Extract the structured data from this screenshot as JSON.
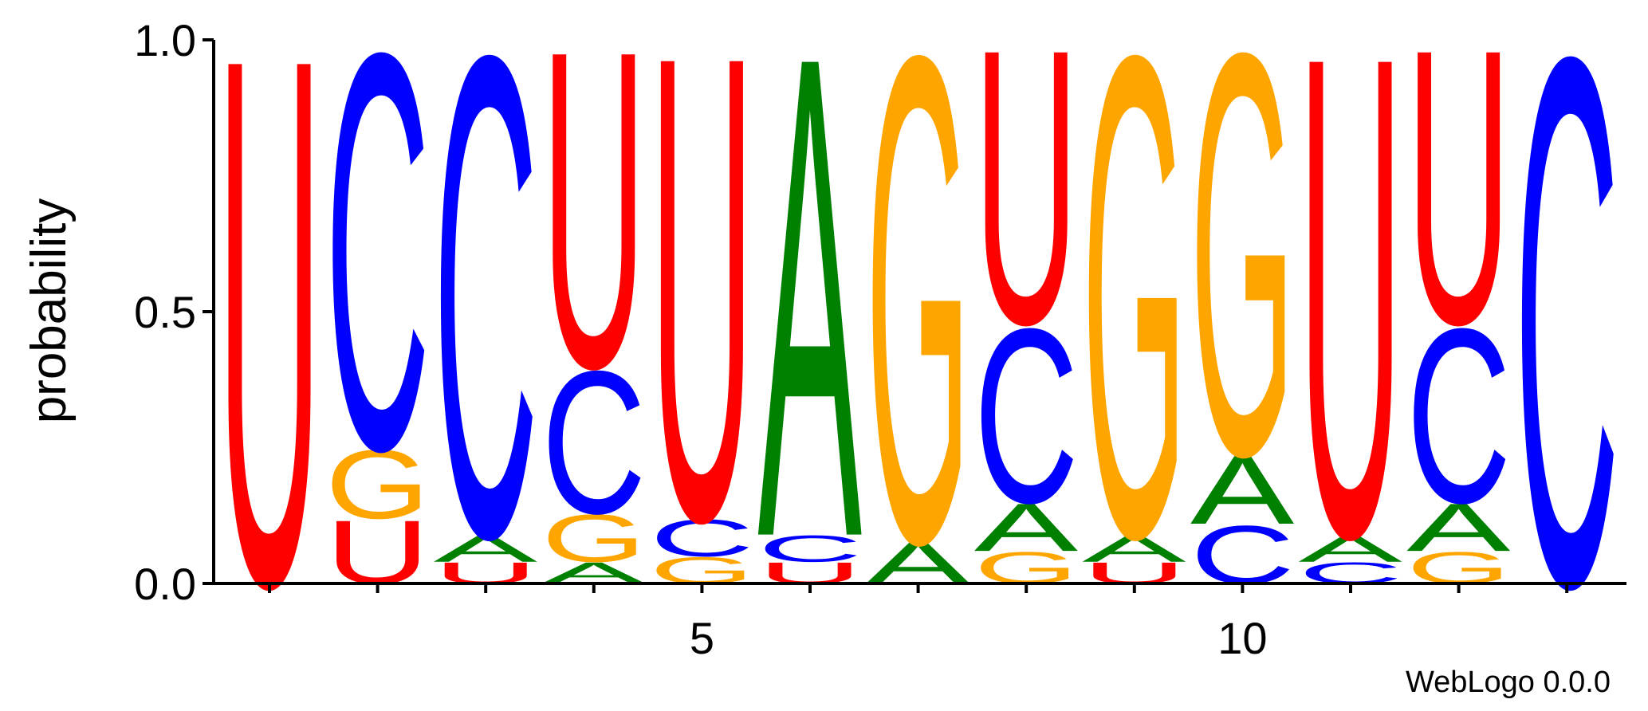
{
  "chart_data": {
    "type": "sequence-logo",
    "ylabel": "probability",
    "ylim": [
      0,
      1
    ],
    "y_ticks": [
      {
        "value": 0.0,
        "label": "0.0"
      },
      {
        "value": 0.5,
        "label": "0.5"
      },
      {
        "value": 1.0,
        "label": "1.0"
      }
    ],
    "x_ticks_labeled": [
      {
        "position": 5,
        "label": "5"
      },
      {
        "position": 10,
        "label": "10"
      }
    ],
    "positions": [
      1,
      2,
      3,
      4,
      5,
      6,
      7,
      8,
      9,
      10,
      11,
      12,
      13
    ],
    "colors": {
      "U": "#ff0000",
      "C": "#0000ff",
      "G": "#ffa500",
      "A": "#008000"
    },
    "stacks": [
      [
        {
          "letter": "U",
          "p": 1.0
        }
      ],
      [
        {
          "letter": "U",
          "p": 0.12
        },
        {
          "letter": "G",
          "p": 0.13
        },
        {
          "letter": "C",
          "p": 0.75
        }
      ],
      [
        {
          "letter": "U",
          "p": 0.04
        },
        {
          "letter": "A",
          "p": 0.05
        },
        {
          "letter": "C",
          "p": 0.91
        }
      ],
      [
        {
          "letter": "A",
          "p": 0.04
        },
        {
          "letter": "G",
          "p": 0.09
        },
        {
          "letter": "C",
          "p": 0.27
        },
        {
          "letter": "U",
          "p": 0.6
        }
      ],
      [
        {
          "letter": "G",
          "p": 0.05
        },
        {
          "letter": "C",
          "p": 0.07
        },
        {
          "letter": "U",
          "p": 0.88
        }
      ],
      [
        {
          "letter": "U",
          "p": 0.04
        },
        {
          "letter": "C",
          "p": 0.05
        },
        {
          "letter": "A",
          "p": 0.91
        }
      ],
      [
        {
          "letter": "A",
          "p": 0.08
        },
        {
          "letter": "G",
          "p": 0.92
        }
      ],
      [
        {
          "letter": "G",
          "p": 0.06
        },
        {
          "letter": "A",
          "p": 0.09
        },
        {
          "letter": "C",
          "p": 0.33
        },
        {
          "letter": "U",
          "p": 0.52
        }
      ],
      [
        {
          "letter": "U",
          "p": 0.04
        },
        {
          "letter": "A",
          "p": 0.05
        },
        {
          "letter": "G",
          "p": 0.91
        }
      ],
      [
        {
          "letter": "C",
          "p": 0.11
        },
        {
          "letter": "A",
          "p": 0.13
        },
        {
          "letter": "G",
          "p": 0.76
        }
      ],
      [
        {
          "letter": "C",
          "p": 0.04
        },
        {
          "letter": "A",
          "p": 0.05
        },
        {
          "letter": "U",
          "p": 0.91
        }
      ],
      [
        {
          "letter": "G",
          "p": 0.06
        },
        {
          "letter": "A",
          "p": 0.09
        },
        {
          "letter": "C",
          "p": 0.33
        },
        {
          "letter": "U",
          "p": 0.52
        }
      ],
      [
        {
          "letter": "C",
          "p": 1.0
        }
      ]
    ],
    "grid": false,
    "legend": "none"
  },
  "footer": {
    "text": "WebLogo 0.0.0"
  }
}
